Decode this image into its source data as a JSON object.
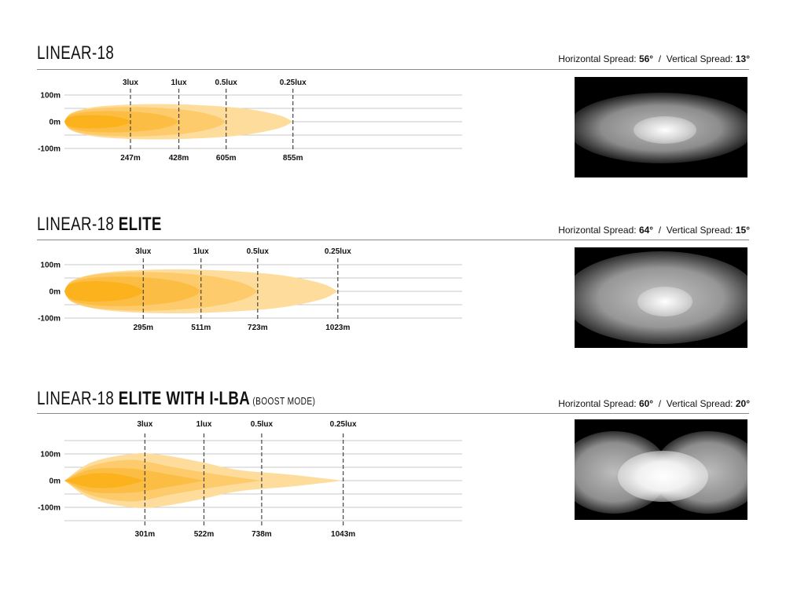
{
  "colors": {
    "contour_025": "#fedd9c",
    "contour_05": "#fdcb6c",
    "contour_1": "#fcbd45",
    "contour_3": "#fbb21c",
    "grid": "#c8c8c8",
    "rule": "#8a8a8a"
  },
  "sections": [
    {
      "title_main": "LINEAR-18",
      "title_bold": "",
      "title_sub": "",
      "spread": {
        "h_label": "Horizontal Spread:",
        "h_value": "56°",
        "sep": "/",
        "v_label": "Vertical Spread:",
        "v_value": "13°"
      },
      "chart_data": {
        "type": "beam-pattern",
        "y_ticks": [
          "100m",
          "0m",
          "-100m"
        ],
        "contours": [
          {
            "lux": "0.25lux",
            "distance": "855m",
            "reach": 855,
            "half_width": 66
          },
          {
            "lux": "0.5lux",
            "distance": "605m",
            "reach": 605,
            "half_width": 55
          },
          {
            "lux": "1lux",
            "distance": "428m",
            "reach": 428,
            "half_width": 40
          },
          {
            "lux": "3lux",
            "distance": "247m",
            "reach": 247,
            "half_width": 25
          }
        ]
      }
    },
    {
      "title_main": "LINEAR-18 ",
      "title_bold": "ELITE",
      "title_sub": "",
      "spread": {
        "h_label": "Horizontal Spread:",
        "h_value": "64°",
        "sep": "/",
        "v_label": "Vertical Spread:",
        "v_value": "15°"
      },
      "chart_data": {
        "type": "beam-pattern",
        "y_ticks": [
          "100m",
          "0m",
          "-100m"
        ],
        "contours": [
          {
            "lux": "0.25lux",
            "distance": "1023m",
            "reach": 1023,
            "half_width": 82
          },
          {
            "lux": "0.5lux",
            "distance": "723m",
            "reach": 723,
            "half_width": 72
          },
          {
            "lux": "1lux",
            "distance": "511m",
            "reach": 511,
            "half_width": 55
          },
          {
            "lux": "3lux",
            "distance": "295m",
            "reach": 295,
            "half_width": 38
          }
        ]
      }
    },
    {
      "title_main": "LINEAR-18 ",
      "title_bold": "ELITE WITH I-LBA",
      "title_sub": "(BOOST MODE)",
      "spread": {
        "h_label": "Horizontal Spread:",
        "h_value": "60°",
        "sep": "/",
        "v_label": "Vertical Spread:",
        "v_value": "20°"
      },
      "chart_data": {
        "type": "beam-pattern",
        "y_ticks": [
          "100m",
          "0m",
          "-100m"
        ],
        "contours": [
          {
            "lux": "0.25lux",
            "distance": "1043m",
            "reach": 1043,
            "profile": [
              [
                0,
                0
              ],
              [
                100,
                68
              ],
              [
                250,
                100
              ],
              [
                350,
                98
              ],
              [
                500,
                72
              ],
              [
                650,
                40
              ],
              [
                850,
                22
              ],
              [
                1043,
                0
              ]
            ]
          },
          {
            "lux": "0.5lux",
            "distance": "738m",
            "reach": 738,
            "profile": [
              [
                0,
                0
              ],
              [
                100,
                55
              ],
              [
                250,
                78
              ],
              [
                400,
                52
              ],
              [
                560,
                25
              ],
              [
                738,
                0
              ]
            ]
          },
          {
            "lux": "1lux",
            "distance": "522m",
            "reach": 522,
            "profile": [
              [
                0,
                0
              ],
              [
                100,
                42
              ],
              [
                250,
                45
              ],
              [
                400,
                22
              ],
              [
                522,
                0
              ]
            ]
          },
          {
            "lux": "3lux",
            "distance": "301m",
            "reach": 301,
            "profile": [
              [
                0,
                0
              ],
              [
                100,
                26
              ],
              [
                200,
                24
              ],
              [
                301,
                0
              ]
            ]
          }
        ]
      }
    }
  ]
}
